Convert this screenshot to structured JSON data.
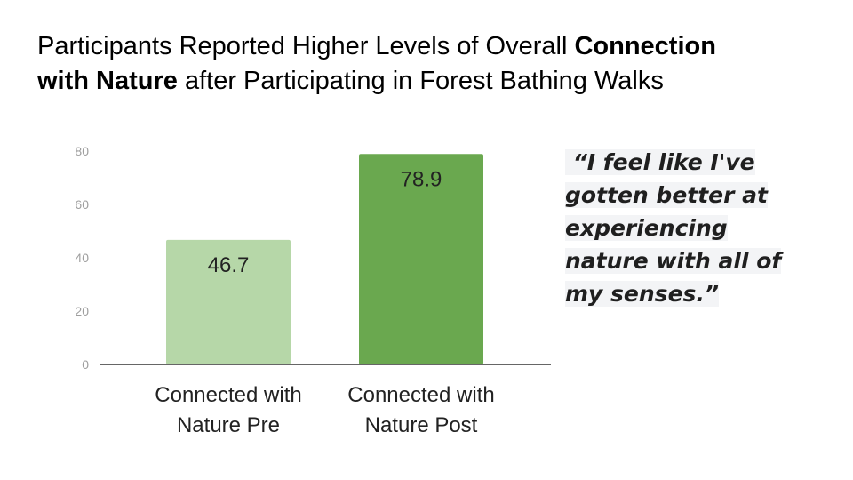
{
  "slide": {
    "title_part1": "Participants Reported Higher Levels of Overall ",
    "title_bold1": "Connection",
    "title_bold2": "with Nature",
    "title_part2": " after Participating in Forest Bathing Walks"
  },
  "quote": {
    "text": " “I feel like I've gotten better at experiencing nature with all of my senses.”"
  },
  "chart_data": {
    "type": "bar",
    "title": "",
    "xlabel": "",
    "ylabel": "",
    "categories": [
      [
        "Connected with",
        "Nature Pre"
      ],
      [
        "Connected with",
        "Nature Post"
      ]
    ],
    "values": [
      46.7,
      78.9
    ],
    "data_labels": [
      "46.7",
      "78.9"
    ],
    "colors": [
      "#b6d7a8",
      "#6aa84f"
    ],
    "ylim": [
      0,
      80
    ],
    "yticks": [
      0,
      20,
      40,
      60,
      80
    ],
    "grid": false,
    "legend": "none"
  }
}
